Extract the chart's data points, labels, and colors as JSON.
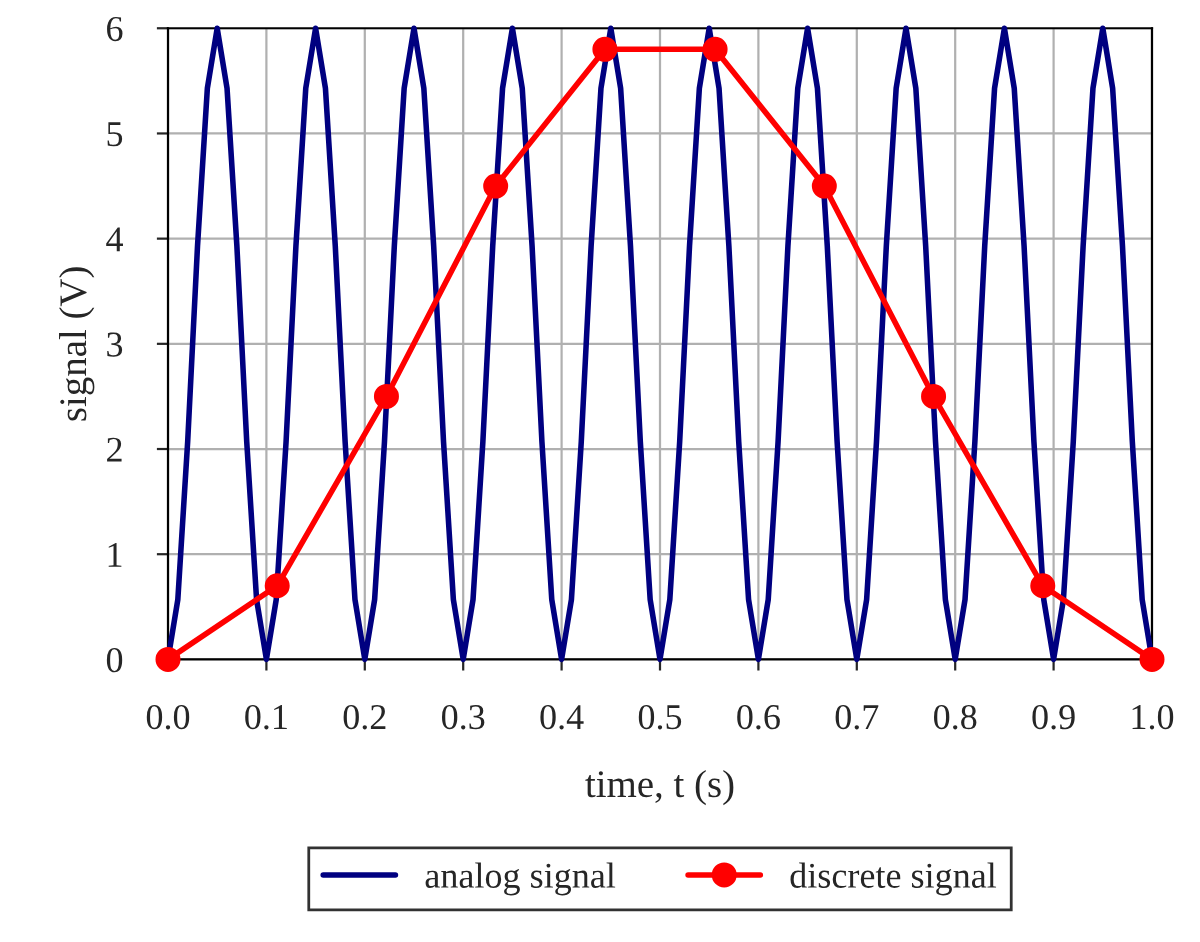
{
  "chart_data": {
    "type": "line",
    "xlabel": "time, t (s)",
    "ylabel": "signal (V)",
    "xlim": [
      0,
      1
    ],
    "ylim": [
      0,
      6
    ],
    "xticks": [
      {
        "value": 0,
        "label": "0.0"
      },
      {
        "value": 0.1,
        "label": "0.1"
      },
      {
        "value": 0.2,
        "label": "0.2"
      },
      {
        "value": 0.3,
        "label": "0.3"
      },
      {
        "value": 0.4,
        "label": "0.4"
      },
      {
        "value": 0.5,
        "label": "0.5"
      },
      {
        "value": 0.6,
        "label": "0.6"
      },
      {
        "value": 0.7,
        "label": "0.7"
      },
      {
        "value": 0.8,
        "label": "0.8"
      },
      {
        "value": 0.9,
        "label": "0.9"
      },
      {
        "value": 1,
        "label": "1.0"
      }
    ],
    "yticks": [
      0,
      1,
      2,
      3,
      4,
      5,
      6
    ],
    "grid": true,
    "legend": "bottom",
    "series": [
      {
        "name": "analog signal",
        "color": "#000080",
        "marker": "none",
        "x": [
          0,
          0.01,
          0.02,
          0.03,
          0.04,
          0.05,
          0.06,
          0.07,
          0.08,
          0.09,
          0.1,
          0.11,
          0.12,
          0.13,
          0.14,
          0.15,
          0.16,
          0.17,
          0.18,
          0.19,
          0.2,
          0.21,
          0.22,
          0.23,
          0.24,
          0.25,
          0.26,
          0.27,
          0.28,
          0.29,
          0.3,
          0.31,
          0.32,
          0.33,
          0.34,
          0.35,
          0.36,
          0.37,
          0.38,
          0.39,
          0.4,
          0.41,
          0.42,
          0.43,
          0.44,
          0.45,
          0.46,
          0.47,
          0.48,
          0.49,
          0.5,
          0.51,
          0.52,
          0.53,
          0.54,
          0.55,
          0.56,
          0.57,
          0.58,
          0.59,
          0.6,
          0.61,
          0.62,
          0.63,
          0.64,
          0.65,
          0.66,
          0.67,
          0.68,
          0.69,
          0.7,
          0.71,
          0.72,
          0.73,
          0.74,
          0.75,
          0.76,
          0.77,
          0.78,
          0.79,
          0.8,
          0.81,
          0.82,
          0.83,
          0.84,
          0.85,
          0.86,
          0.87,
          0.88,
          0.89,
          0.9,
          0.91,
          0.92,
          0.93,
          0.94,
          0.95,
          0.96,
          0.97,
          0.98,
          0.99,
          1
        ],
        "values": [
          0,
          0.57,
          2.07,
          3.93,
          5.43,
          6,
          5.43,
          3.93,
          2.07,
          0.57,
          0,
          0.57,
          2.07,
          3.93,
          5.43,
          6,
          5.43,
          3.93,
          2.07,
          0.57,
          0,
          0.57,
          2.07,
          3.93,
          5.43,
          6,
          5.43,
          3.93,
          2.07,
          0.57,
          0,
          0.57,
          2.07,
          3.93,
          5.43,
          6,
          5.43,
          3.93,
          2.07,
          0.57,
          0,
          0.57,
          2.07,
          3.93,
          5.43,
          6,
          5.43,
          3.93,
          2.07,
          0.57,
          0,
          0.57,
          2.07,
          3.93,
          5.43,
          6,
          5.43,
          3.93,
          2.07,
          0.57,
          0,
          0.57,
          2.07,
          3.93,
          5.43,
          6,
          5.43,
          3.93,
          2.07,
          0.57,
          0,
          0.57,
          2.07,
          3.93,
          5.43,
          6,
          5.43,
          3.93,
          2.07,
          0.57,
          0,
          0.57,
          2.07,
          3.93,
          5.43,
          6,
          5.43,
          3.93,
          2.07,
          0.57,
          0,
          0.57,
          2.07,
          3.93,
          5.43,
          6,
          5.43,
          3.93,
          2.07,
          0.57,
          0
        ]
      },
      {
        "name": "discrete signal",
        "color": "#ff0000",
        "marker": "circle",
        "x": [
          0,
          0.111,
          0.222,
          0.333,
          0.444,
          0.556,
          0.667,
          0.778,
          0.889,
          1
        ],
        "values": [
          0,
          0.7,
          2.5,
          4.5,
          5.8,
          5.8,
          4.5,
          2.5,
          0.7,
          0
        ]
      }
    ]
  }
}
